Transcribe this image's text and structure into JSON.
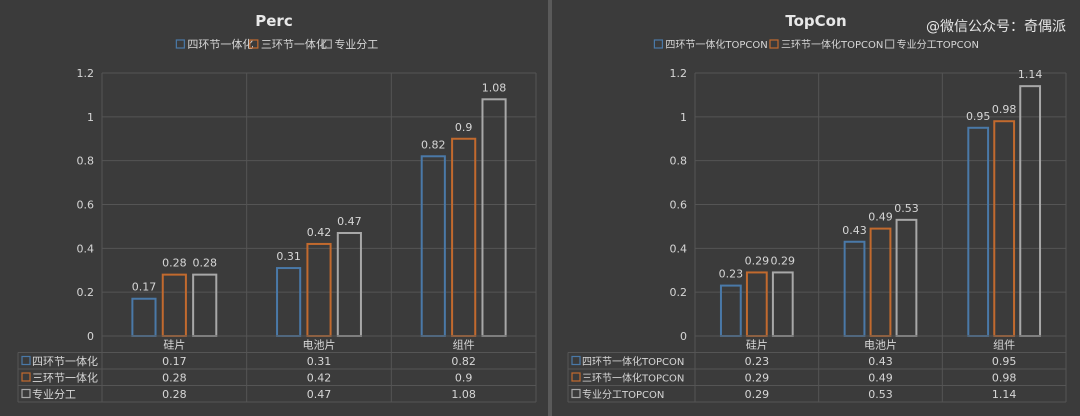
{
  "watermark": "@微信公众号：奇偶派",
  "colors": {
    "series1": "#4a79a8",
    "series2": "#c26a2e",
    "series3": "#a8a8a8",
    "text": "#d6d6d6",
    "grid": "#555555"
  },
  "chart_data": [
    {
      "type": "bar",
      "title": "Perc",
      "categories": [
        "硅片",
        "电池片",
        "组件"
      ],
      "ylim": [
        0,
        1.2
      ],
      "yticks": [
        "0",
        "0.2",
        "0.4",
        "0.6",
        "0.8",
        "1",
        "1.2"
      ],
      "legend_position": "top",
      "series": [
        {
          "name": "四环节一体化",
          "values": [
            0.17,
            0.31,
            0.82
          ],
          "value_labels": [
            "0.17",
            "0.31",
            "0.82"
          ]
        },
        {
          "name": "三环节一体化",
          "values": [
            0.28,
            0.42,
            0.9
          ],
          "value_labels": [
            "0.28",
            "0.42",
            "0.9"
          ]
        },
        {
          "name": "专业分工",
          "values": [
            0.28,
            0.47,
            1.08
          ],
          "value_labels": [
            "0.28",
            "0.47",
            "1.08"
          ]
        }
      ]
    },
    {
      "type": "bar",
      "title": "TopCon",
      "categories": [
        "硅片",
        "电池片",
        "组件"
      ],
      "ylim": [
        0,
        1.2
      ],
      "yticks": [
        "0",
        "0.2",
        "0.4",
        "0.6",
        "0.8",
        "1",
        "1.2"
      ],
      "legend_position": "top",
      "series": [
        {
          "name": "四环节一体化TOPCON",
          "values": [
            0.23,
            0.43,
            0.95
          ],
          "value_labels": [
            "0.23",
            "0.43",
            "0.95"
          ]
        },
        {
          "name": "三环节一体化TOPCON",
          "values": [
            0.29,
            0.49,
            0.98
          ],
          "value_labels": [
            "0.29",
            "0.49",
            "0.98"
          ]
        },
        {
          "name": "专业分工TOPCON",
          "values": [
            0.29,
            0.53,
            1.14
          ],
          "value_labels": [
            "0.29",
            "0.53",
            "1.14"
          ]
        }
      ]
    }
  ]
}
